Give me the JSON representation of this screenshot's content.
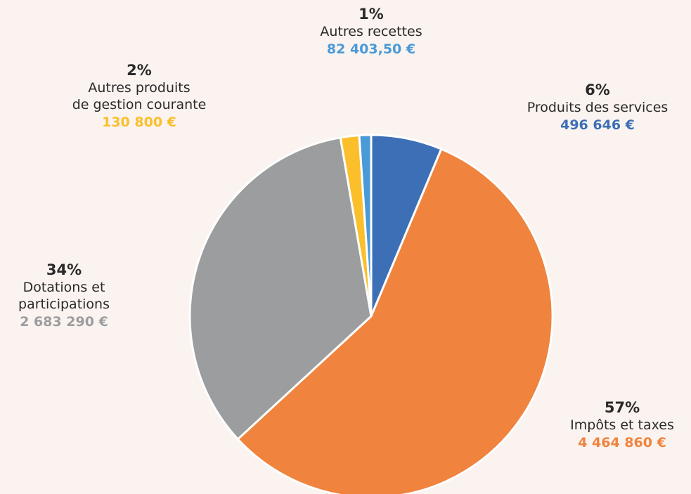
{
  "chart_data": {
    "type": "pie",
    "slices": [
      {
        "percent": "6%",
        "name_lines": [
          "Produits des services"
        ],
        "amount": "496 646 €",
        "value": 496646,
        "color": "#3d6fb6"
      },
      {
        "percent": "57%",
        "name_lines": [
          "Impôts et taxes"
        ],
        "amount": "4 464 860 €",
        "value": 4464860,
        "color": "#f0833d"
      },
      {
        "percent": "34%",
        "name_lines": [
          "Dotations et",
          "participations"
        ],
        "amount": "2 683 290 €",
        "value": 2683290,
        "color": "#9b9d9f"
      },
      {
        "percent": "2%",
        "name_lines": [
          "Autres produits",
          "de gestion courante"
        ],
        "amount": "130 800 €",
        "value": 130800,
        "color": "#fbbf2c"
      },
      {
        "percent": "1%",
        "name_lines": [
          "Autres recettes"
        ],
        "amount": "82 403,50 €",
        "value": 82403.5,
        "color": "#4a9ad8"
      }
    ]
  }
}
